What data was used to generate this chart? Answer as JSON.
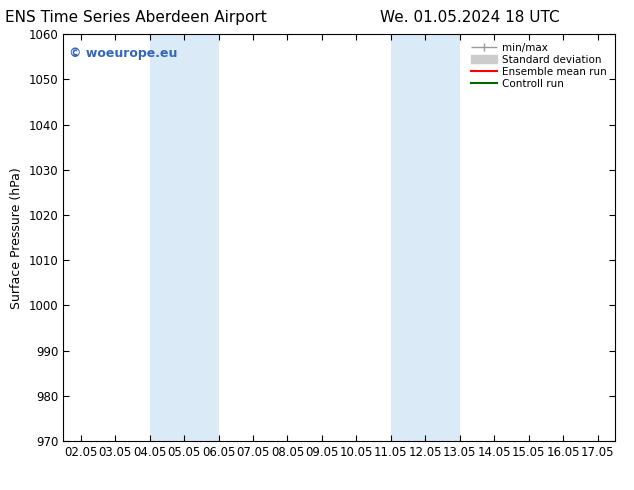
{
  "title_left": "ENS Time Series Aberdeen Airport",
  "title_right": "We. 01.05.2024 18 UTC",
  "ylabel": "Surface Pressure (hPa)",
  "ylim": [
    970,
    1060
  ],
  "yticks": [
    970,
    980,
    990,
    1000,
    1010,
    1020,
    1030,
    1040,
    1050,
    1060
  ],
  "xtick_labels": [
    "02.05",
    "03.05",
    "04.05",
    "05.05",
    "06.05",
    "07.05",
    "08.05",
    "09.05",
    "10.05",
    "11.05",
    "12.05",
    "13.05",
    "14.05",
    "15.05",
    "16.05",
    "17.05"
  ],
  "xtick_positions": [
    0,
    1,
    2,
    3,
    4,
    5,
    6,
    7,
    8,
    9,
    10,
    11,
    12,
    13,
    14,
    15
  ],
  "xlim": [
    -0.5,
    15.5
  ],
  "shaded_bands": [
    {
      "x_start": 2.0,
      "x_end": 4.0,
      "color": "#daeaf7"
    },
    {
      "x_start": 9.0,
      "x_end": 11.0,
      "color": "#daeaf7"
    }
  ],
  "watermark_text": "© woeurope.eu",
  "watermark_color": "#3366bb",
  "legend_items": [
    {
      "label": "min/max",
      "color": "#999999",
      "linestyle": "-",
      "linewidth": 1.0
    },
    {
      "label": "Standard deviation",
      "color": "#cccccc",
      "linestyle": "-",
      "linewidth": 6
    },
    {
      "label": "Ensemble mean run",
      "color": "#ff0000",
      "linestyle": "-",
      "linewidth": 1.5
    },
    {
      "label": "Controll run",
      "color": "#006600",
      "linestyle": "-",
      "linewidth": 1.5
    }
  ],
  "bg_color": "#ffffff",
  "tick_color": "#000000",
  "title_fontsize": 11,
  "label_fontsize": 9,
  "tick_fontsize": 8.5,
  "watermark_fontsize": 9
}
